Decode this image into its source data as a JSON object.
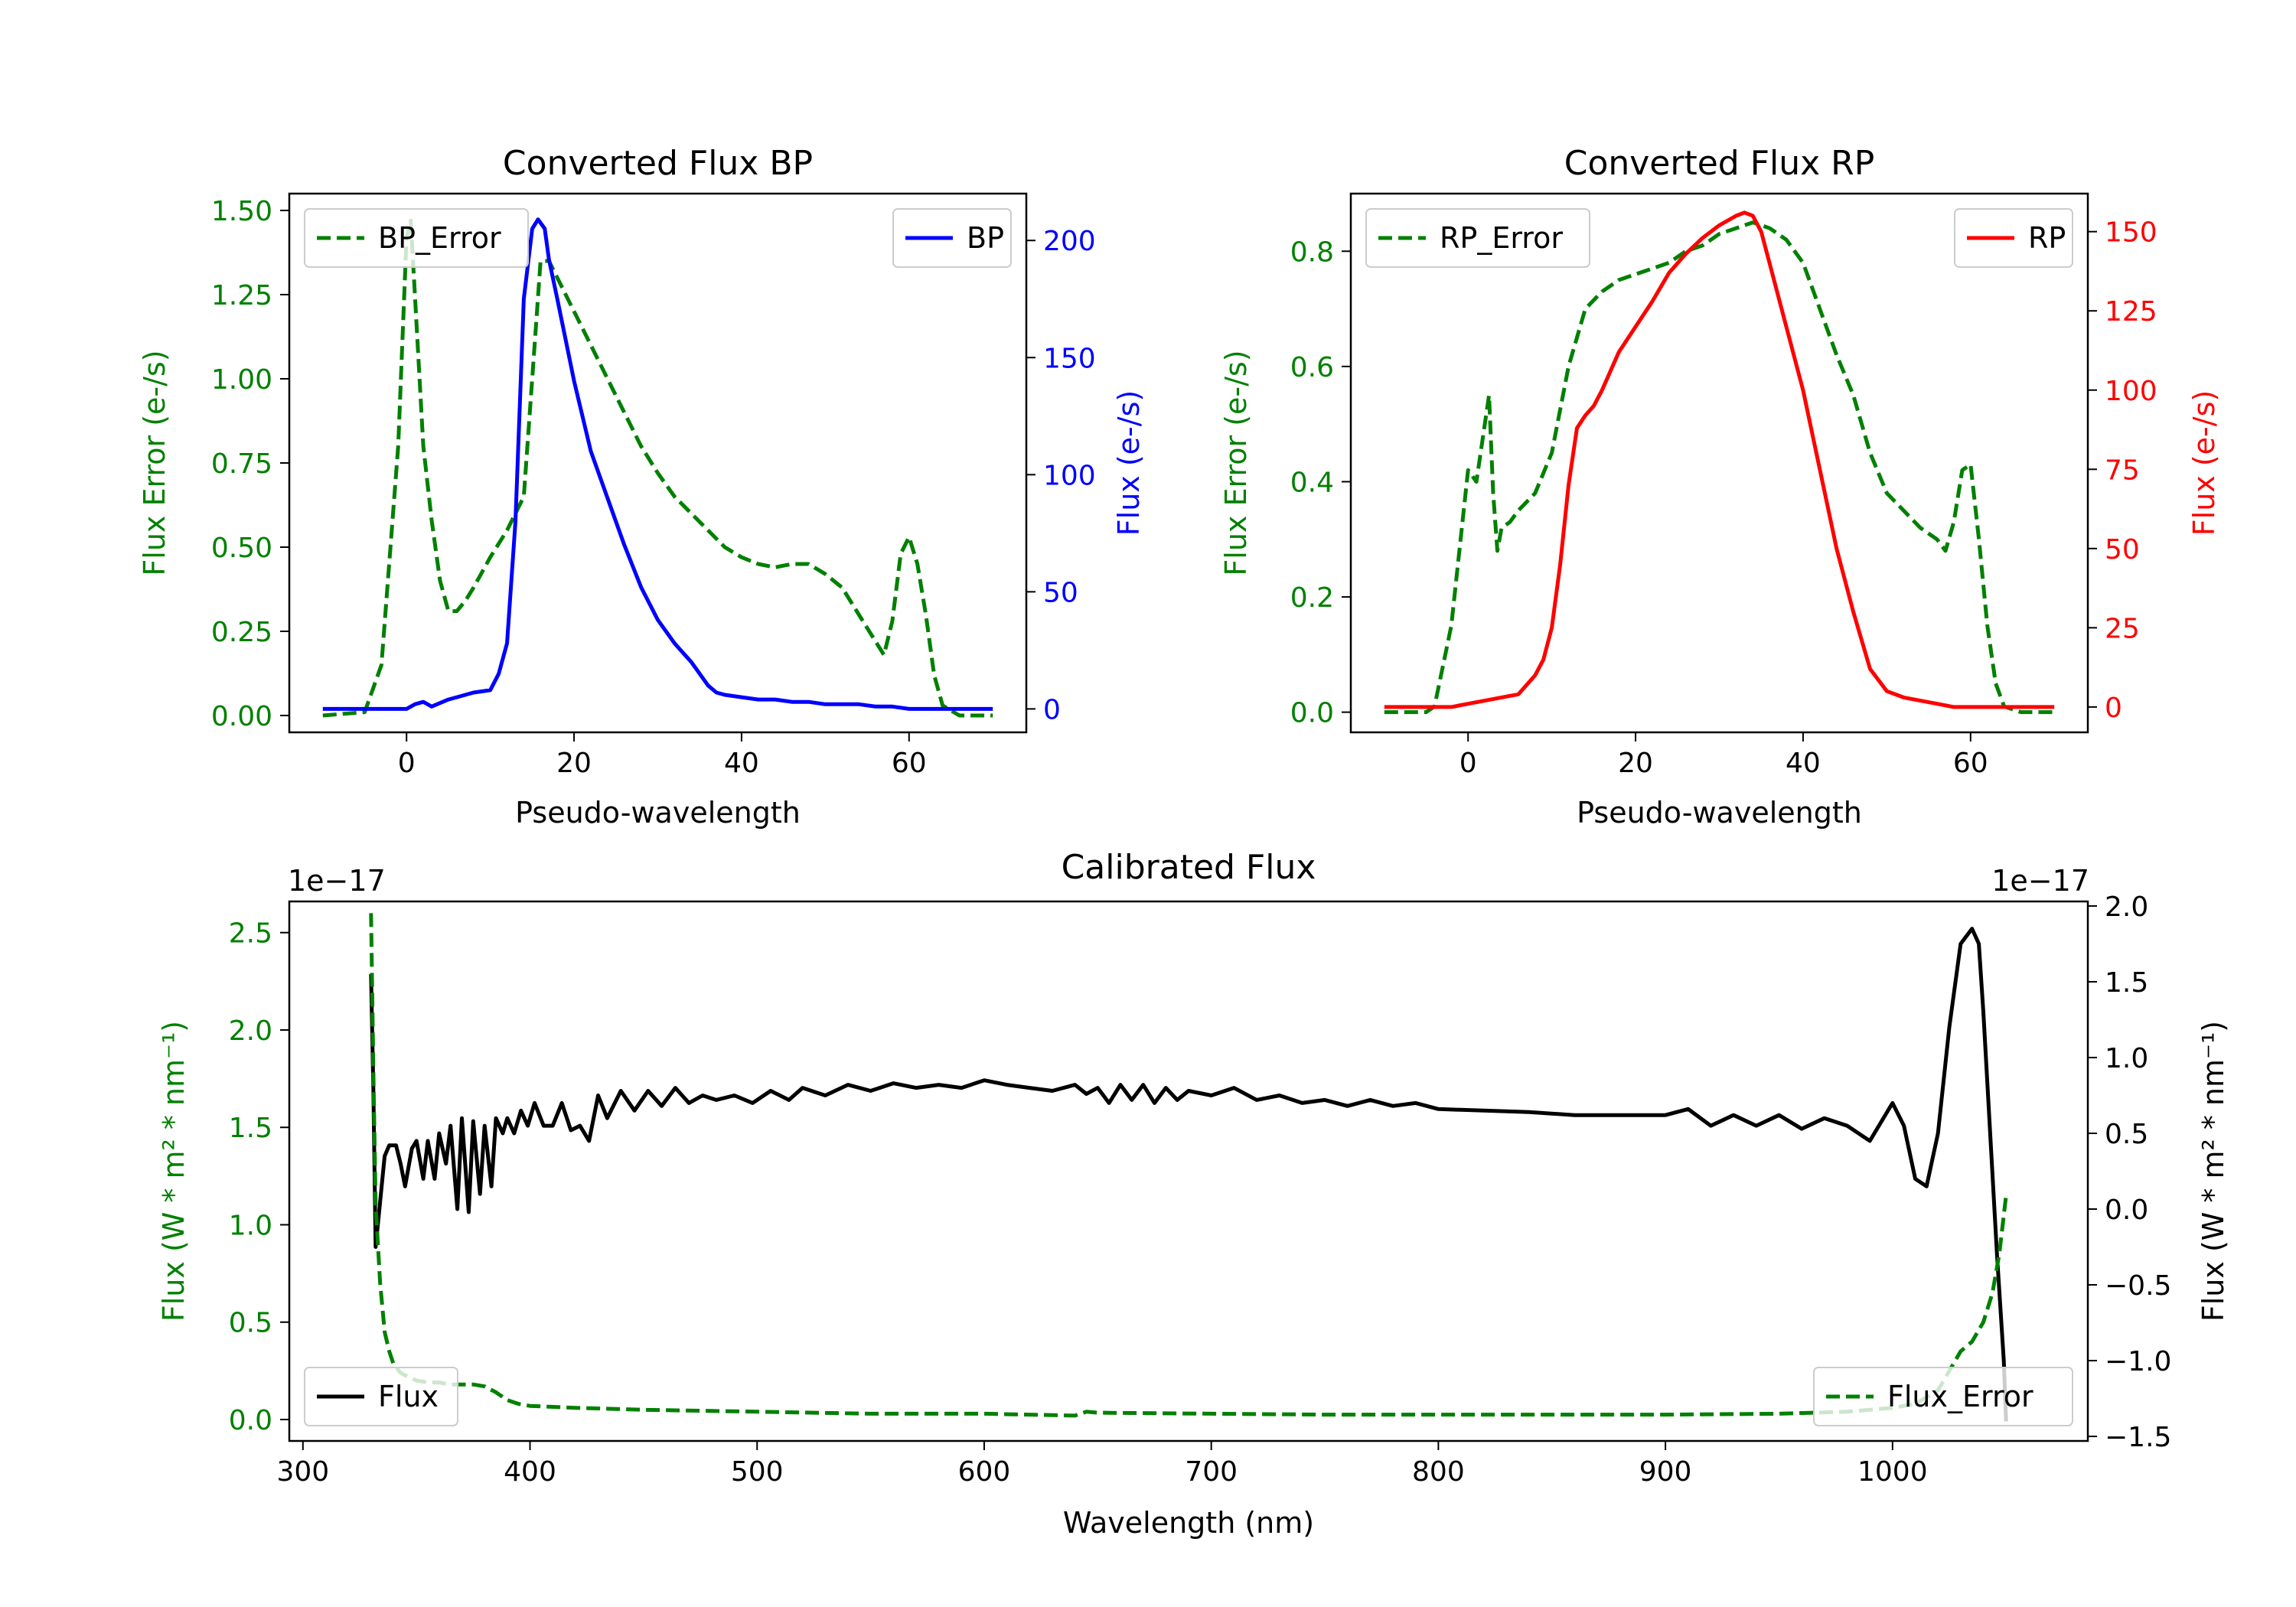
{
  "chart_data": [
    {
      "id": "bp",
      "type": "line",
      "title": "Converted Flux BP",
      "xlabel": "Pseudo-wavelength",
      "ylabel_left": "Flux Error (e-/s)",
      "ylabel_right": "Flux (e-/s)",
      "xlim": [
        -14,
        74
      ],
      "ylim_left": [
        -0.05,
        1.55
      ],
      "ylim_right": [
        -10,
        220
      ],
      "xticks": [
        0,
        20,
        40,
        60
      ],
      "xtick_labels": [
        "0",
        "20",
        "40",
        "60"
      ],
      "yticks_left": [
        0,
        0.25,
        0.5,
        0.75,
        1.0,
        1.25,
        1.5
      ],
      "ytick_labels_left": [
        "0.00",
        "0.25",
        "0.50",
        "0.75",
        "1.00",
        "1.25",
        "1.50"
      ],
      "yticks_right": [
        0,
        50,
        100,
        150,
        200
      ],
      "ytick_labels_right": [
        "0",
        "50",
        "100",
        "150",
        "200"
      ],
      "left_axis_color": "#008000",
      "right_axis_color": "#0000ff",
      "legend_left": {
        "label": "BP_Error",
        "position": "upper left"
      },
      "legend_right": {
        "label": "BP",
        "position": "upper right"
      },
      "series": [
        {
          "name": "BP_Error",
          "axis": "left",
          "color": "#008000",
          "style": "dashed",
          "x": [
            -10,
            -5,
            -3,
            -1,
            0,
            0.5,
            1,
            2,
            3,
            4,
            5,
            6,
            7,
            8,
            10,
            12,
            14,
            15,
            16,
            17,
            18,
            20,
            22,
            24,
            26,
            28,
            30,
            32,
            34,
            36,
            38,
            40,
            42,
            44,
            46,
            48,
            50,
            52,
            54,
            56,
            57,
            58,
            59,
            60,
            61,
            62,
            63,
            64,
            66,
            70
          ],
          "y": [
            0,
            0.01,
            0.15,
            0.8,
            1.42,
            1.47,
            1.25,
            0.8,
            0.58,
            0.4,
            0.31,
            0.31,
            0.34,
            0.38,
            0.47,
            0.55,
            0.65,
            1.0,
            1.35,
            1.35,
            1.3,
            1.2,
            1.1,
            1.0,
            0.9,
            0.8,
            0.72,
            0.65,
            0.6,
            0.55,
            0.5,
            0.47,
            0.45,
            0.44,
            0.45,
            0.45,
            0.42,
            0.38,
            0.3,
            0.22,
            0.18,
            0.28,
            0.48,
            0.53,
            0.45,
            0.3,
            0.12,
            0.03,
            0,
            0
          ]
        },
        {
          "name": "BP",
          "axis": "right",
          "color": "#0000ff",
          "style": "solid",
          "x": [
            -10,
            -5,
            -2,
            0,
            1,
            2,
            3,
            5,
            6,
            8,
            10,
            11,
            12,
            13,
            14,
            15,
            15.7,
            16.5,
            17,
            18,
            20,
            22,
            24,
            26,
            28,
            30,
            32,
            34,
            36,
            37,
            38,
            40,
            42,
            44,
            46,
            48,
            50,
            52,
            54,
            56,
            58,
            60,
            62,
            64,
            66,
            70
          ],
          "y": [
            0,
            0,
            0,
            0,
            2,
            3,
            1,
            4,
            5,
            7,
            8,
            15,
            28,
            80,
            175,
            205,
            209,
            205,
            192,
            175,
            140,
            110,
            90,
            70,
            52,
            38,
            28,
            20,
            10,
            7,
            6,
            5,
            4,
            4,
            3,
            3,
            2,
            2,
            2,
            1,
            1,
            0,
            0,
            0,
            0,
            0
          ]
        }
      ]
    },
    {
      "id": "rp",
      "type": "line",
      "title": "Converted Flux RP",
      "xlabel": "Pseudo-wavelength",
      "ylabel_left": "Flux Error (e-/s)",
      "ylabel_right": "Flux (e-/s)",
      "xlim": [
        -14,
        74
      ],
      "ylim_left": [
        -0.035,
        0.9
      ],
      "ylim_right": [
        -8,
        162
      ],
      "xticks": [
        0,
        20,
        40,
        60
      ],
      "xtick_labels": [
        "0",
        "20",
        "40",
        "60"
      ],
      "yticks_left": [
        0,
        0.2,
        0.4,
        0.6,
        0.8
      ],
      "ytick_labels_left": [
        "0.0",
        "0.2",
        "0.4",
        "0.6",
        "0.8"
      ],
      "yticks_right": [
        0,
        25,
        50,
        75,
        100,
        125,
        150
      ],
      "ytick_labels_right": [
        "0",
        "25",
        "50",
        "75",
        "100",
        "125",
        "150"
      ],
      "left_axis_color": "#008000",
      "right_axis_color": "#ff0000",
      "legend_left": {
        "label": "RP_Error",
        "position": "upper left"
      },
      "legend_right": {
        "label": "RP",
        "position": "upper right"
      },
      "series": [
        {
          "name": "RP_Error",
          "axis": "left",
          "color": "#008000",
          "style": "dashed",
          "x": [
            -10,
            -5,
            -4,
            -2,
            0,
            1,
            2,
            2.5,
            3,
            3.5,
            4,
            5,
            6,
            8,
            10,
            12,
            14,
            16,
            18,
            20,
            22,
            24,
            26,
            28,
            30,
            32,
            34,
            36,
            38,
            40,
            42,
            44,
            46,
            48,
            50,
            52,
            54,
            56,
            57,
            58,
            59,
            60,
            61,
            62,
            63,
            64,
            66,
            70
          ],
          "y": [
            0,
            0,
            0.01,
            0.15,
            0.42,
            0.4,
            0.5,
            0.55,
            0.38,
            0.28,
            0.32,
            0.33,
            0.35,
            0.38,
            0.45,
            0.6,
            0.7,
            0.73,
            0.75,
            0.76,
            0.77,
            0.78,
            0.8,
            0.81,
            0.83,
            0.84,
            0.85,
            0.84,
            0.82,
            0.78,
            0.7,
            0.62,
            0.55,
            0.45,
            0.38,
            0.35,
            0.32,
            0.3,
            0.28,
            0.33,
            0.42,
            0.43,
            0.3,
            0.15,
            0.05,
            0.01,
            0,
            0
          ]
        },
        {
          "name": "RP",
          "axis": "right",
          "color": "#ff0000",
          "style": "solid",
          "x": [
            -10,
            -5,
            -2,
            0,
            2,
            4,
            6,
            8,
            9,
            10,
            11,
            12,
            13,
            14,
            15,
            16,
            18,
            20,
            22,
            24,
            26,
            28,
            30,
            32,
            33,
            34,
            35,
            36,
            38,
            40,
            42,
            44,
            46,
            48,
            50,
            52,
            54,
            56,
            58,
            60,
            62,
            66,
            70
          ],
          "y": [
            0,
            0,
            0,
            1,
            2,
            3,
            4,
            10,
            15,
            25,
            45,
            70,
            88,
            92,
            95,
            100,
            112,
            120,
            128,
            137,
            143,
            148,
            152,
            155,
            156,
            155,
            150,
            140,
            120,
            100,
            75,
            50,
            30,
            12,
            5,
            3,
            2,
            1,
            0,
            0,
            0,
            0,
            0
          ]
        }
      ]
    },
    {
      "id": "calibrated",
      "type": "line",
      "title": "Calibrated Flux",
      "xlabel": "Wavelength (nm)",
      "ylabel_left": "Flux (W * m² * nm⁻¹)",
      "ylabel_right": "Flux (W * m² * nm⁻¹)",
      "offset_left": "1e−17",
      "offset_right": "1e−17",
      "xlim": [
        294,
        1086
      ],
      "ylim_left": [
        -0.11,
        2.66
      ],
      "ylim_right": [
        -1.53,
        2.03
      ],
      "xticks": [
        300,
        400,
        500,
        600,
        700,
        800,
        900,
        1000
      ],
      "xtick_labels": [
        "300",
        "400",
        "500",
        "600",
        "700",
        "800",
        "900",
        "1000"
      ],
      "yticks_left": [
        0,
        0.5,
        1.0,
        1.5,
        2.0,
        2.5
      ],
      "ytick_labels_left": [
        "0.0",
        "0.5",
        "1.0",
        "1.5",
        "2.0",
        "2.5"
      ],
      "yticks_right": [
        -1.5,
        -1.0,
        -0.5,
        0.0,
        0.5,
        1.0,
        1.5,
        2.0
      ],
      "ytick_labels_right": [
        "−1.5",
        "−1.0",
        "−0.5",
        "0.0",
        "0.5",
        "1.0",
        "1.5",
        "2.0"
      ],
      "left_axis_color": "#008000",
      "right_axis_color": "#000000",
      "legend_left": {
        "label": "Flux",
        "position": "lower left"
      },
      "legend_right": {
        "label": "Flux_Error",
        "position": "lower right"
      },
      "series": [
        {
          "name": "Flux",
          "axis": "right",
          "color": "#000000",
          "style": "solid",
          "x": [
            330,
            331,
            332,
            334,
            336,
            338,
            341,
            343,
            345,
            348,
            350,
            353,
            355,
            358,
            360,
            363,
            365,
            368,
            370,
            373,
            375,
            378,
            380,
            383,
            385,
            388,
            390,
            393,
            396,
            399,
            402,
            406,
            410,
            414,
            418,
            422,
            426,
            430,
            434,
            440,
            446,
            452,
            458,
            464,
            470,
            476,
            482,
            490,
            498,
            506,
            514,
            520,
            530,
            540,
            550,
            560,
            570,
            580,
            590,
            600,
            610,
            620,
            630,
            640,
            645,
            650,
            655,
            660,
            665,
            670,
            675,
            680,
            685,
            690,
            700,
            710,
            720,
            730,
            740,
            750,
            760,
            770,
            780,
            790,
            800,
            820,
            840,
            860,
            880,
            900,
            910,
            920,
            930,
            940,
            950,
            960,
            970,
            980,
            990,
            1000,
            1005,
            1010,
            1015,
            1020,
            1025,
            1030,
            1035,
            1038,
            1040,
            1043,
            1046,
            1049,
            1050
          ],
          "y": [
            1.55,
            0.8,
            -0.25,
            0.05,
            0.35,
            0.42,
            0.42,
            0.3,
            0.15,
            0.4,
            0.45,
            0.2,
            0.45,
            0.2,
            0.5,
            0.3,
            0.55,
            0.0,
            0.6,
            -0.02,
            0.58,
            0.1,
            0.55,
            0.15,
            0.6,
            0.5,
            0.6,
            0.5,
            0.65,
            0.55,
            0.7,
            0.55,
            0.55,
            0.7,
            0.52,
            0.55,
            0.45,
            0.75,
            0.6,
            0.78,
            0.65,
            0.78,
            0.68,
            0.8,
            0.7,
            0.75,
            0.72,
            0.75,
            0.7,
            0.78,
            0.72,
            0.8,
            0.75,
            0.82,
            0.78,
            0.83,
            0.8,
            0.82,
            0.8,
            0.85,
            0.82,
            0.8,
            0.78,
            0.82,
            0.76,
            0.8,
            0.7,
            0.82,
            0.72,
            0.82,
            0.7,
            0.8,
            0.72,
            0.78,
            0.75,
            0.8,
            0.72,
            0.75,
            0.7,
            0.72,
            0.68,
            0.72,
            0.68,
            0.7,
            0.66,
            0.65,
            0.64,
            0.62,
            0.62,
            0.62,
            0.66,
            0.55,
            0.62,
            0.55,
            0.62,
            0.53,
            0.6,
            0.55,
            0.45,
            0.7,
            0.55,
            0.2,
            0.15,
            0.5,
            1.2,
            1.75,
            1.85,
            1.75,
            1.3,
            0.5,
            -0.3,
            -1.0,
            -1.4
          ]
        },
        {
          "name": "Flux_Error",
          "axis": "left",
          "color": "#008000",
          "style": "dashed",
          "x": [
            330,
            331,
            332,
            334,
            336,
            338,
            340,
            343,
            346,
            350,
            355,
            360,
            365,
            370,
            375,
            380,
            385,
            390,
            395,
            400,
            420,
            450,
            500,
            550,
            600,
            640,
            645,
            650,
            700,
            750,
            800,
            850,
            900,
            950,
            980,
            1000,
            1010,
            1020,
            1025,
            1030,
            1035,
            1040,
            1044,
            1047,
            1050
          ],
          "y": [
            2.6,
            1.8,
            1.1,
            0.7,
            0.45,
            0.35,
            0.28,
            0.24,
            0.22,
            0.2,
            0.19,
            0.19,
            0.18,
            0.18,
            0.18,
            0.17,
            0.14,
            0.1,
            0.08,
            0.07,
            0.06,
            0.05,
            0.04,
            0.03,
            0.03,
            0.02,
            0.04,
            0.035,
            0.03,
            0.025,
            0.025,
            0.025,
            0.025,
            0.03,
            0.04,
            0.06,
            0.08,
            0.15,
            0.25,
            0.35,
            0.4,
            0.5,
            0.65,
            0.85,
            1.15
          ]
        }
      ]
    }
  ]
}
